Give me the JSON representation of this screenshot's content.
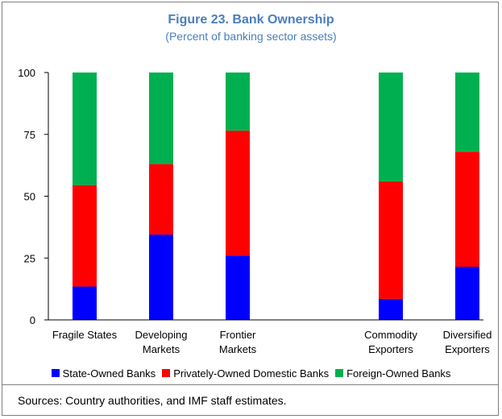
{
  "title": "Figure 23. Bank Ownership",
  "subtitle": "(Percent of banking sector assets)",
  "source": "Sources: Country authorities, and IMF staff estimates.",
  "colors": {
    "title": "#4a7ebb",
    "state": "#0000ff",
    "private": "#ff0000",
    "foreign": "#00b050"
  },
  "chart_data": {
    "type": "bar",
    "stacked": true,
    "title": "Figure 23. Bank Ownership",
    "subtitle": "(Percent of banking sector assets)",
    "categories": [
      [
        "Fragile States"
      ],
      [
        "Developing",
        "Markets"
      ],
      [
        "Frontier",
        "Markets"
      ],
      [],
      [
        "Commodity",
        "Exporters"
      ],
      [
        "Diversified",
        "Exporters"
      ]
    ],
    "yticks": [
      "0",
      "25",
      "50",
      "75",
      "100"
    ],
    "ylim": [
      0,
      100
    ],
    "series": [
      {
        "name": "State-Owned Banks",
        "values": [
          13.5,
          34.5,
          26,
          null,
          8.5,
          21.5
        ]
      },
      {
        "name": "Privately-Owned Domestic Banks",
        "values": [
          41,
          28.5,
          50.5,
          null,
          47.5,
          46.5
        ]
      },
      {
        "name": "Foreign-Owned Banks",
        "values": [
          45.5,
          37,
          23.5,
          null,
          44,
          32
        ]
      }
    ],
    "legend_position": "bottom"
  }
}
